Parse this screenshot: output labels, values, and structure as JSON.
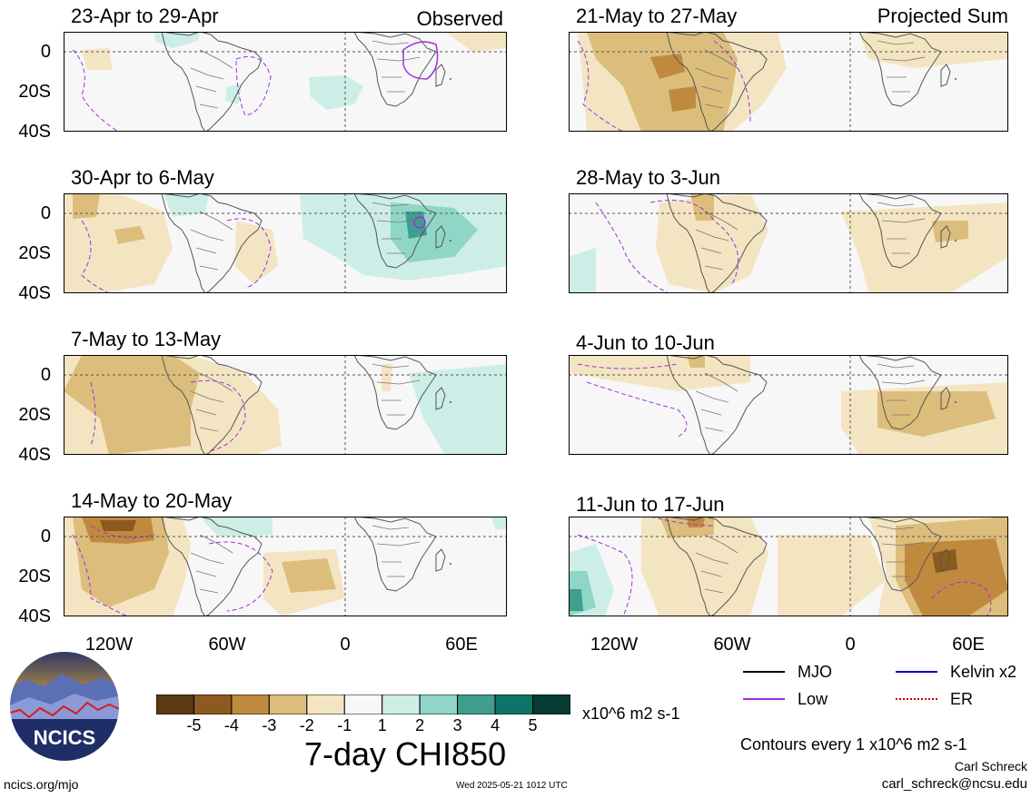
{
  "header": {
    "left_tag": "Observed",
    "right_tag": "Projected Sum"
  },
  "panels": [
    {
      "title": "23-Apr to 29-Apr"
    },
    {
      "title": "30-Apr to 6-May"
    },
    {
      "title": "7-May to 13-May"
    },
    {
      "title": "14-May to 20-May"
    },
    {
      "title": "21-May to 27-May"
    },
    {
      "title": "28-May to 3-Jun"
    },
    {
      "title": "4-Jun to 10-Jun"
    },
    {
      "title": "11-Jun to 17-Jun"
    }
  ],
  "axes": {
    "y_ticks": [
      "0",
      "20S",
      "40S"
    ],
    "x_ticks": [
      "120W",
      "60W",
      "0",
      "60E"
    ]
  },
  "colorbar": {
    "labels": [
      "-5",
      "-4",
      "-3",
      "-2",
      "-1",
      "1",
      "2",
      "3",
      "4",
      "5"
    ],
    "colors": [
      "#5a3a12",
      "#8c5a1e",
      "#c08a3e",
      "#dcbd7c",
      "#f4e5c2",
      "#f7f7f7",
      "#cdeee6",
      "#8fd6c7",
      "#3f9e90",
      "#0e7468",
      "#053b33"
    ],
    "units": "x10^6 m2 s-1",
    "title": "7-day CHI850"
  },
  "legend": {
    "items": [
      {
        "label": "MJO",
        "color": "#000000"
      },
      {
        "label": "Kelvin x2",
        "color": "#0000cc"
      },
      {
        "label": "Low",
        "color": "#9b30e0"
      },
      {
        "label": "ER",
        "color": "#cc0000"
      }
    ],
    "contours": "Contours every 1 x10^6 m2 s-1"
  },
  "footer": {
    "author": "Carl Schreck",
    "email": "carl_schreck@ncsu.edu",
    "url": "ncics.org/mjo",
    "timestamp": "Wed 2025-05-21 1012 UTC",
    "logo_text": "NCICS"
  }
}
